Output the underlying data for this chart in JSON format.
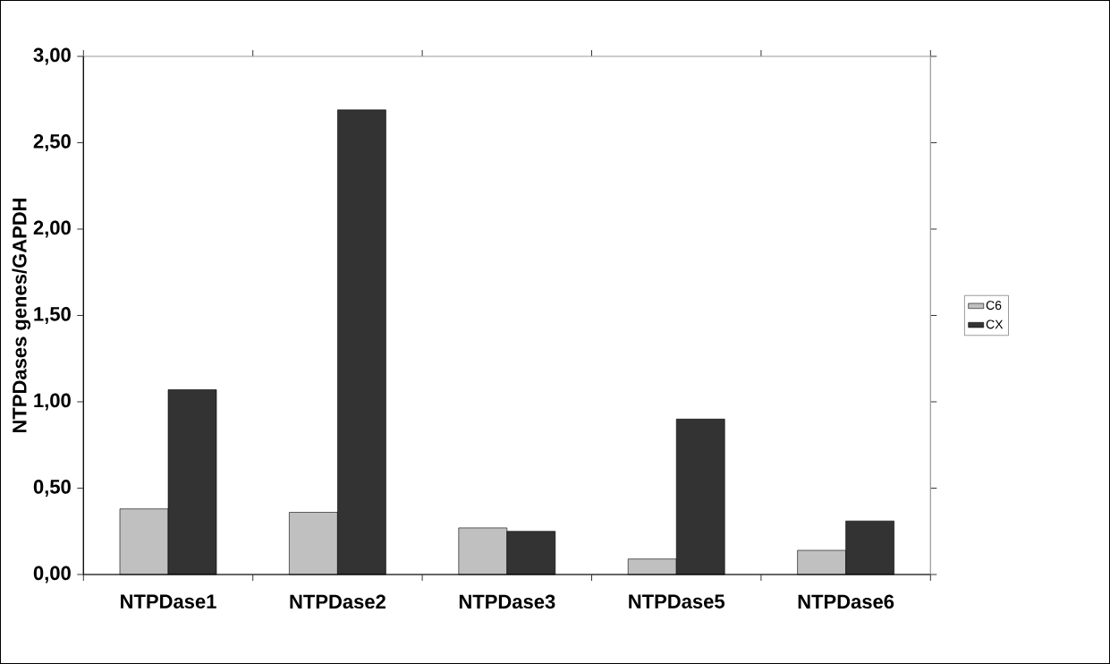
{
  "chart_data": {
    "type": "bar",
    "ylabel": "NTPDases genes/GAPDH",
    "categories": [
      "NTPDase1",
      "NTPDase2",
      "NTPDase3",
      "NTPDase5",
      "NTPDase6"
    ],
    "series": [
      {
        "name": "C6",
        "color": "#c0c0c0",
        "values": [
          0.38,
          0.36,
          0.27,
          0.09,
          0.14
        ]
      },
      {
        "name": "CX",
        "color": "#333333",
        "values": [
          1.07,
          2.69,
          0.25,
          0.9,
          0.31
        ]
      }
    ],
    "ylim": [
      0,
      3
    ],
    "yticks": [
      {
        "value": 0,
        "label": "0,00"
      },
      {
        "value": 0.5,
        "label": "0,50"
      },
      {
        "value": 1,
        "label": "1,00"
      },
      {
        "value": 1.5,
        "label": "1,50"
      },
      {
        "value": 2,
        "label": "2,00"
      },
      {
        "value": 2.5,
        "label": "2,50"
      },
      {
        "value": 3,
        "label": "3,00"
      }
    ],
    "legend": "right"
  }
}
